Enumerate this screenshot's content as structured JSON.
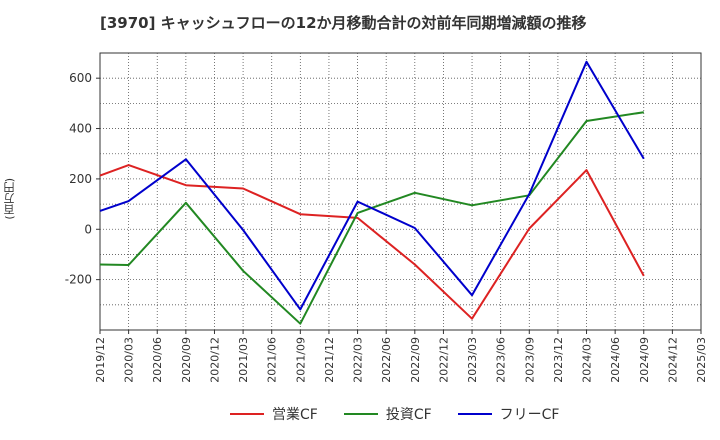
{
  "chart_data": {
    "type": "line",
    "title": "[3970]  キャッシュフローの12か月移動合計の対前年同期増減額の推移",
    "ylabel": "(百万円)",
    "xlabel": "",
    "categories": [
      "2019/12",
      "2020/03",
      "2020/06",
      "2020/09",
      "2020/12",
      "2021/03",
      "2021/06",
      "2021/09",
      "2021/12",
      "2022/03",
      "2022/06",
      "2022/09",
      "2022/12",
      "2023/03",
      "2023/06",
      "2023/09",
      "2023/12",
      "2024/03",
      "2024/06",
      "2024/09",
      "2024/12",
      "2025/03"
    ],
    "yticks": [
      "600",
      "400",
      "200",
      "0",
      "-200"
    ],
    "ylim": [
      -400,
      700
    ],
    "grid": true,
    "legend_position": "bottom",
    "series": [
      {
        "name": "営業CF",
        "color": "#dd2222",
        "values": [
          213,
          255,
          null,
          175,
          null,
          162,
          null,
          60,
          null,
          45,
          null,
          -140,
          null,
          -355,
          null,
          3,
          null,
          235,
          null,
          -185,
          null,
          null
        ]
      },
      {
        "name": "投資CF",
        "color": "#228822",
        "values": [
          -140,
          -142,
          null,
          105,
          null,
          -165,
          null,
          -375,
          null,
          65,
          null,
          145,
          null,
          95,
          null,
          135,
          null,
          430,
          null,
          465,
          null,
          null
        ]
      },
      {
        "name": "フリーCF",
        "color": "#0000cc",
        "values": [
          73,
          112,
          null,
          278,
          null,
          -3,
          null,
          -318,
          null,
          110,
          null,
          5,
          null,
          -262,
          null,
          140,
          null,
          665,
          null,
          280,
          null,
          null
        ]
      }
    ]
  }
}
